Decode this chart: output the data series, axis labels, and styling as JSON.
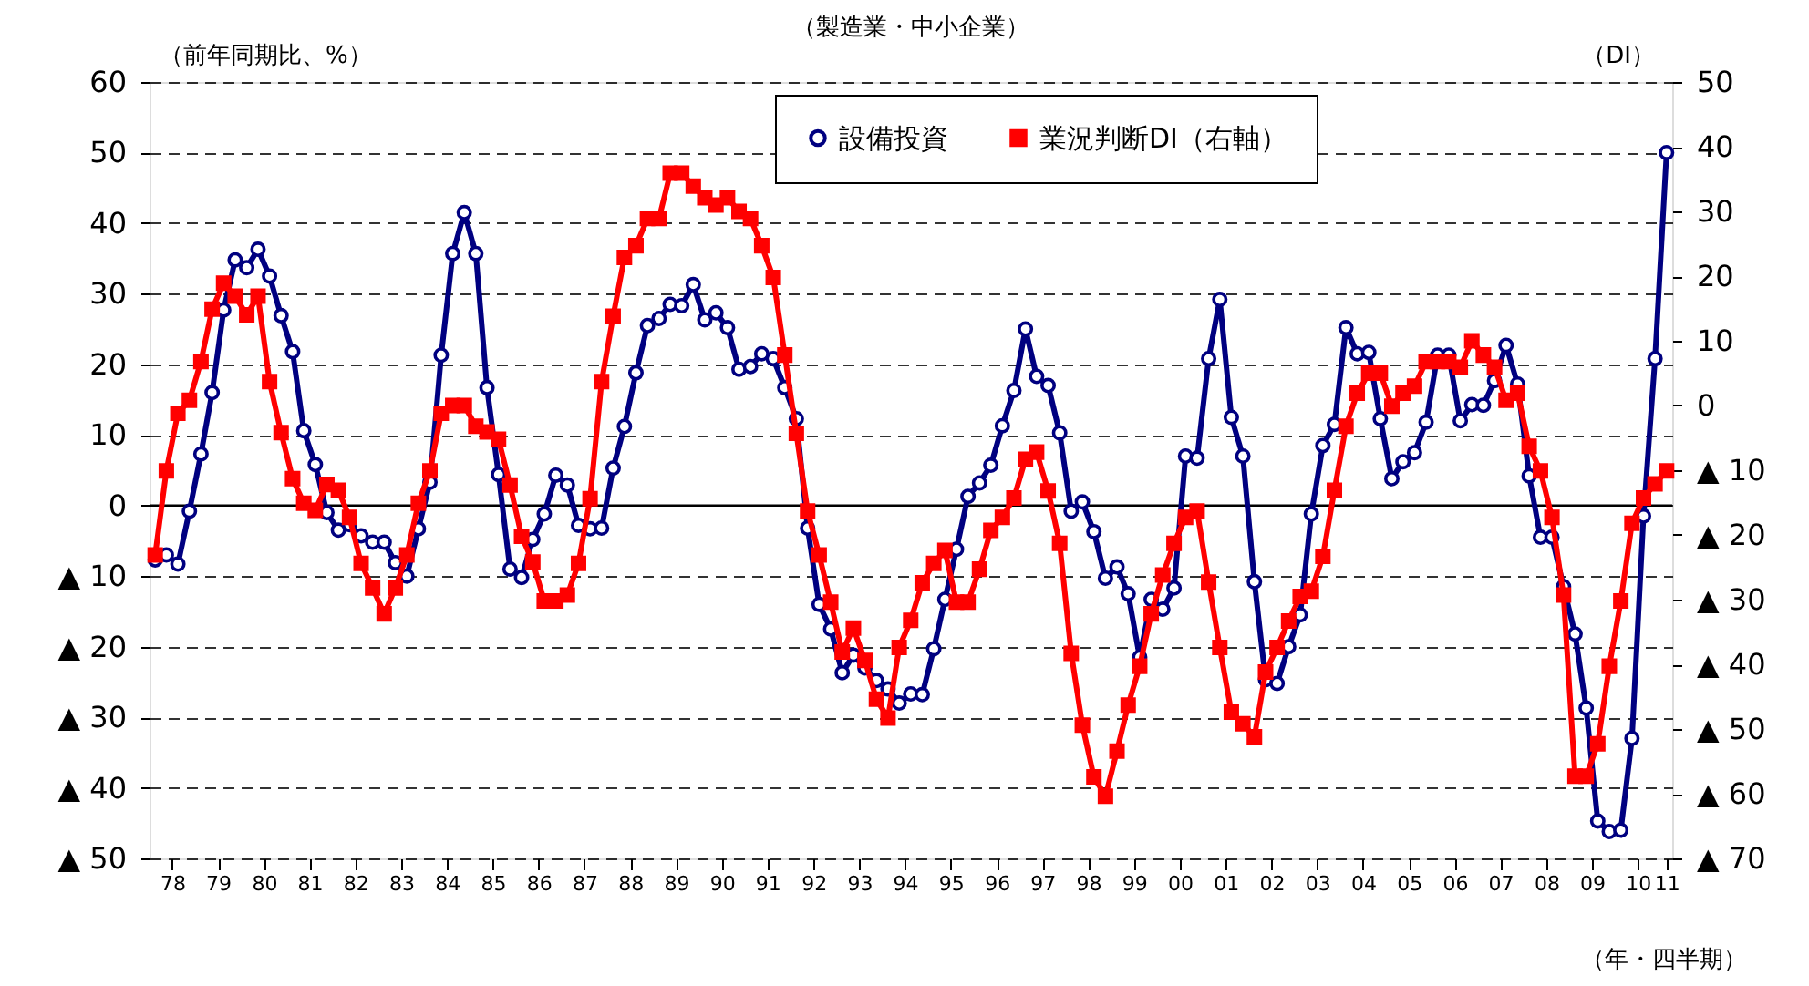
{
  "chart_data": {
    "type": "line",
    "title": "（製造業・中小企業）",
    "xlabel": "（年・四半期）",
    "ylabel": "（前年同期比、%）",
    "y2label": "（DI）",
    "x": [
      "1978-02-15",
      "1978-05-15",
      "1978-08-15",
      "1978-11-15",
      "1979-02-15",
      "1979-05-15",
      "1979-08-15",
      "1979-11-15",
      "1980-02-15",
      "1980-05-15",
      "1980-08-15",
      "1980-11-15",
      "1981-02-15",
      "1981-05-15",
      "1981-08-15",
      "1981-11-15",
      "1982-02-15",
      "1982-05-15",
      "1982-08-15",
      "1982-11-15",
      "1983-02-15",
      "1983-05-15",
      "1983-08-15",
      "1983-11-15",
      "1984-02-15",
      "1984-05-15",
      "1984-08-15",
      "1984-11-15",
      "1985-02-15",
      "1985-05-15",
      "1985-08-15",
      "1985-11-15",
      "1986-02-15",
      "1986-05-15",
      "1986-08-15",
      "1986-11-15",
      "1987-02-15",
      "1987-05-15",
      "1987-08-15",
      "1987-11-15",
      "1988-02-15",
      "1988-05-15",
      "1988-08-15",
      "1988-11-15",
      "1989-02-15",
      "1989-05-15",
      "1989-08-15",
      "1989-11-15",
      "1990-02-15",
      "1990-05-15",
      "1990-08-15",
      "1990-11-15",
      "1991-02-15",
      "1991-05-15",
      "1991-08-15",
      "1991-11-15",
      "1992-02-15",
      "1992-05-15",
      "1992-08-15",
      "1992-11-15",
      "1993-02-15",
      "1993-05-15",
      "1993-08-15",
      "1993-11-15",
      "1994-02-15",
      "1994-05-15",
      "1994-08-15",
      "1994-11-15",
      "1995-02-15",
      "1995-05-15",
      "1995-08-15",
      "1995-11-15",
      "1996-02-15",
      "1996-05-15",
      "1996-08-15",
      "1996-11-15",
      "1997-02-15",
      "1997-05-15",
      "1997-08-15",
      "1997-11-15",
      "1998-02-15",
      "1998-05-15",
      "1998-08-15",
      "1998-11-15",
      "1999-02-15",
      "1999-05-15",
      "1999-08-15",
      "1999-11-15",
      "2000-02-15",
      "2000-05-15",
      "2000-08-15",
      "2000-11-15",
      "2001-02-15",
      "2001-05-15",
      "2001-08-15",
      "2001-11-15",
      "2002-02-15",
      "2002-05-15",
      "2002-08-15",
      "2002-11-15",
      "2003-02-15",
      "2003-05-15",
      "2003-08-15",
      "2003-11-15",
      "2004-02-15",
      "2004-05-15",
      "2004-08-15",
      "2004-11-15",
      "2005-02-15",
      "2005-05-15",
      "2005-08-15",
      "2005-11-15",
      "2006-02-15",
      "2006-05-15",
      "2006-08-15",
      "2006-11-15",
      "2007-02-15",
      "2007-05-15",
      "2007-08-15",
      "2007-11-15",
      "2008-02-15",
      "2008-05-15",
      "2008-08-15",
      "2008-11-15",
      "2009-02-15",
      "2009-05-15",
      "2009-08-15",
      "2009-11-15",
      "2010-02-15",
      "2010-05-15",
      "2010-08-15",
      "2010-11-15",
      "2011-02-15"
    ],
    "series": [
      {
        "name": "設備投資",
        "color": "#000080",
        "marker": "circle",
        "values": [
          -7.7,
          -7.0,
          -8.3,
          -0.8,
          7.3,
          16.0,
          27.7,
          34.8,
          33.7,
          36.3,
          32.5,
          26.9,
          21.8,
          10.6,
          5.8,
          -1.0,
          -3.5,
          -2.7,
          -4.3,
          -5.2,
          -5.2,
          -8.1,
          -10.0,
          -3.3,
          3.3,
          21.3,
          35.7,
          41.5,
          35.7,
          16.7,
          4.4,
          -9.0,
          -10.2,
          -4.8,
          -1.2,
          4.3,
          2.9,
          -2.8,
          -3.3,
          -3.2,
          5.3,
          11.2,
          18.8,
          25.5,
          26.5,
          28.5,
          28.3,
          31.3,
          26.3,
          27.3,
          25.2,
          19.3,
          19.7,
          21.5,
          20.8,
          16.7,
          12.3,
          -3.2,
          -14.0,
          -17.5,
          -23.7,
          -21.2,
          -23.0,
          -24.8,
          -26.0,
          -28.0,
          -26.7,
          -26.8,
          -20.3,
          -13.3,
          -6.2,
          1.3,
          3.2,
          5.7,
          11.3,
          16.3,
          25.0,
          18.3,
          17.0,
          10.3,
          -0.8,
          0.5,
          -3.7,
          -10.3,
          -8.7,
          -12.5,
          -21.5,
          -13.3,
          -14.7,
          -11.7,
          7.0,
          6.7,
          20.8,
          29.2,
          12.5,
          7.0,
          -10.8,
          -24.7,
          -25.2,
          -20.0,
          -15.5,
          -1.2,
          8.5,
          11.5,
          25.2,
          21.5,
          21.7,
          12.3,
          3.8,
          6.2,
          7.5,
          11.8,
          21.3,
          21.3,
          12.0,
          14.3,
          14.2,
          17.7,
          22.7,
          17.2,
          4.2,
          -4.5,
          -4.5,
          -11.5,
          -18.2,
          -28.7,
          -44.7,
          -46.2,
          -46.0,
          -33.0,
          -1.5,
          20.8,
          50.0
        ]
      },
      {
        "name": "業況判断DI（右軸）",
        "color": "#ff0000",
        "marker": "square",
        "axis": "y2",
        "values": [
          -23.1,
          -10.1,
          -1.2,
          0.8,
          6.8,
          14.9,
          18.9,
          16.9,
          14.0,
          16.9,
          3.7,
          -4.2,
          -11.3,
          -15.1,
          -16.2,
          -12.2,
          -13.1,
          -17.3,
          -24.4,
          -28.2,
          -32.2,
          -28.2,
          -23.1,
          -15.1,
          -10.1,
          -1.2,
          0.0,
          0.0,
          -3.2,
          -4.1,
          -5.2,
          -12.3,
          -20.2,
          -24.2,
          -30.2,
          -30.2,
          -29.3,
          -24.4,
          -14.4,
          3.7,
          13.8,
          22.9,
          24.7,
          28.9,
          28.9,
          35.9,
          35.9,
          33.9,
          32.1,
          31.0,
          32.1,
          30.0,
          28.9,
          24.7,
          19.8,
          7.8,
          -4.3,
          -16.3,
          -23.1,
          -30.4,
          -38.1,
          -34.4,
          -39.4,
          -45.4,
          -48.3,
          -37.4,
          -33.2,
          -27.4,
          -24.4,
          -22.4,
          -30.4,
          -30.4,
          -25.3,
          -19.3,
          -17.3,
          -14.3,
          -8.3,
          -7.2,
          -13.2,
          -21.3,
          -38.3,
          -49.4,
          -57.4,
          -60.4,
          -53.4,
          -46.3,
          -40.3,
          -32.2,
          -26.2,
          -21.3,
          -17.3,
          -16.3,
          -27.3,
          -37.4,
          -47.4,
          -49.2,
          -51.2,
          -41.2,
          -37.4,
          -33.3,
          -29.5,
          -28.7,
          -23.3,
          -13.1,
          -3.2,
          1.9,
          5.0,
          5.0,
          -0.1,
          1.9,
          3.0,
          6.8,
          6.8,
          6.8,
          5.9,
          10.0,
          7.8,
          5.9,
          0.8,
          1.9,
          -6.3,
          -10.1,
          -17.3,
          -29.3,
          -57.3,
          -57.3,
          -52.3,
          -40.3,
          -30.2,
          -18.2,
          -14.3,
          -12.1,
          -10.1
        ]
      }
    ],
    "xlim": [
      "1978-01-01",
      "2011-04-01"
    ],
    "xticks": [
      {
        "value": "1978-07-01",
        "label": "78"
      },
      {
        "value": "1979-07-01",
        "label": "79"
      },
      {
        "value": "1980-07-01",
        "label": "80"
      },
      {
        "value": "1981-07-01",
        "label": "81"
      },
      {
        "value": "1982-07-01",
        "label": "82"
      },
      {
        "value": "1983-07-01",
        "label": "83"
      },
      {
        "value": "1984-07-01",
        "label": "84"
      },
      {
        "value": "1985-07-01",
        "label": "85"
      },
      {
        "value": "1986-07-01",
        "label": "86"
      },
      {
        "value": "1987-07-01",
        "label": "87"
      },
      {
        "value": "1988-07-01",
        "label": "88"
      },
      {
        "value": "1989-07-01",
        "label": "89"
      },
      {
        "value": "1990-07-01",
        "label": "90"
      },
      {
        "value": "1991-07-01",
        "label": "91"
      },
      {
        "value": "1992-07-01",
        "label": "92"
      },
      {
        "value": "1993-07-01",
        "label": "93"
      },
      {
        "value": "1994-07-01",
        "label": "94"
      },
      {
        "value": "1995-07-01",
        "label": "95"
      },
      {
        "value": "1996-07-01",
        "label": "96"
      },
      {
        "value": "1997-07-01",
        "label": "97"
      },
      {
        "value": "1998-07-01",
        "label": "98"
      },
      {
        "value": "1999-07-01",
        "label": "99"
      },
      {
        "value": "2000-07-01",
        "label": "00"
      },
      {
        "value": "2001-07-01",
        "label": "01"
      },
      {
        "value": "2002-07-01",
        "label": "02"
      },
      {
        "value": "2003-07-01",
        "label": "03"
      },
      {
        "value": "2004-07-01",
        "label": "04"
      },
      {
        "value": "2005-07-01",
        "label": "05"
      },
      {
        "value": "2006-07-01",
        "label": "06"
      },
      {
        "value": "2007-07-01",
        "label": "07"
      },
      {
        "value": "2008-07-01",
        "label": "08"
      },
      {
        "value": "2009-07-01",
        "label": "09"
      },
      {
        "value": "2010-07-01",
        "label": "10"
      },
      {
        "value": "2011-02-15",
        "label": "11"
      }
    ],
    "ylim": [
      -50,
      60
    ],
    "yticks": [
      {
        "value": -50,
        "label": "▲ 50"
      },
      {
        "value": -40,
        "label": "▲ 40"
      },
      {
        "value": -30,
        "label": "▲ 30"
      },
      {
        "value": -20,
        "label": "▲ 20"
      },
      {
        "value": -10,
        "label": "▲ 10"
      },
      0,
      10,
      20,
      30,
      40,
      50,
      60
    ],
    "y2lim": [
      -70,
      50
    ],
    "y2ticks": [
      {
        "value": -70,
        "label": "▲ 70"
      },
      {
        "value": -60,
        "label": "▲ 60"
      },
      {
        "value": -50,
        "label": "▲ 50"
      },
      {
        "value": -40,
        "label": "▲ 40"
      },
      {
        "value": -30,
        "label": "▲ 30"
      },
      {
        "value": -20,
        "label": "▲ 20"
      },
      {
        "value": -10,
        "label": "▲ 10"
      },
      0,
      10,
      20,
      30,
      40,
      50
    ],
    "ref_lines": [
      {
        "axis": "y",
        "value": 0,
        "color": "#000000"
      }
    ],
    "grid": "y",
    "legend": "top",
    "line_style": "solid"
  }
}
